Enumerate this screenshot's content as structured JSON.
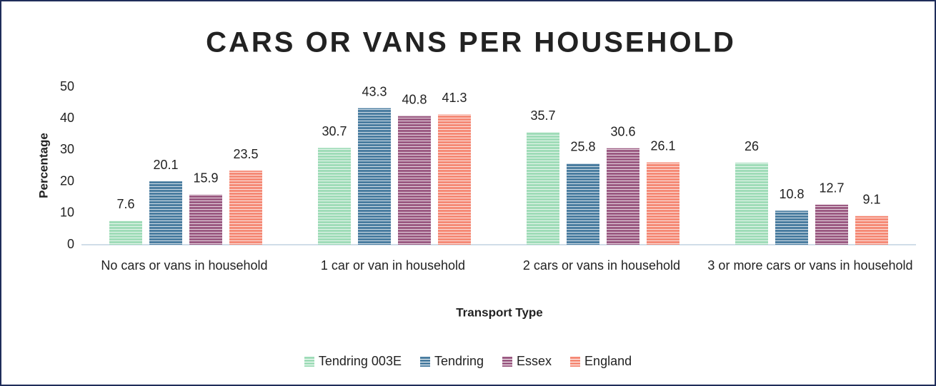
{
  "chart_data": {
    "type": "bar",
    "title": "CARS OR VANS PER HOUSEHOLD",
    "x_label": "Transport Type",
    "y_label": "Percentage",
    "categories": [
      "No cars or vans in household",
      "1 car or van in household",
      "2 cars or vans in household",
      "3 or more cars or vans in household"
    ],
    "series": [
      {
        "name": "Tendring 003E",
        "color": "#9fdcb8",
        "values": [
          7.6,
          30.7,
          35.7,
          26
        ]
      },
      {
        "name": "Tendring",
        "color": "#4a7da0",
        "values": [
          20.1,
          43.3,
          25.8,
          10.8
        ]
      },
      {
        "name": "Essex",
        "color": "#9b5a82",
        "values": [
          15.9,
          40.8,
          30.6,
          12.7
        ]
      },
      {
        "name": "England",
        "color": "#f58a76",
        "values": [
          23.5,
          41.3,
          26.1,
          9.1
        ]
      }
    ],
    "ylim": [
      0,
      50
    ],
    "yticks": [
      0,
      10,
      20,
      30,
      40,
      50
    ],
    "grid": false,
    "legend": "bottom"
  }
}
